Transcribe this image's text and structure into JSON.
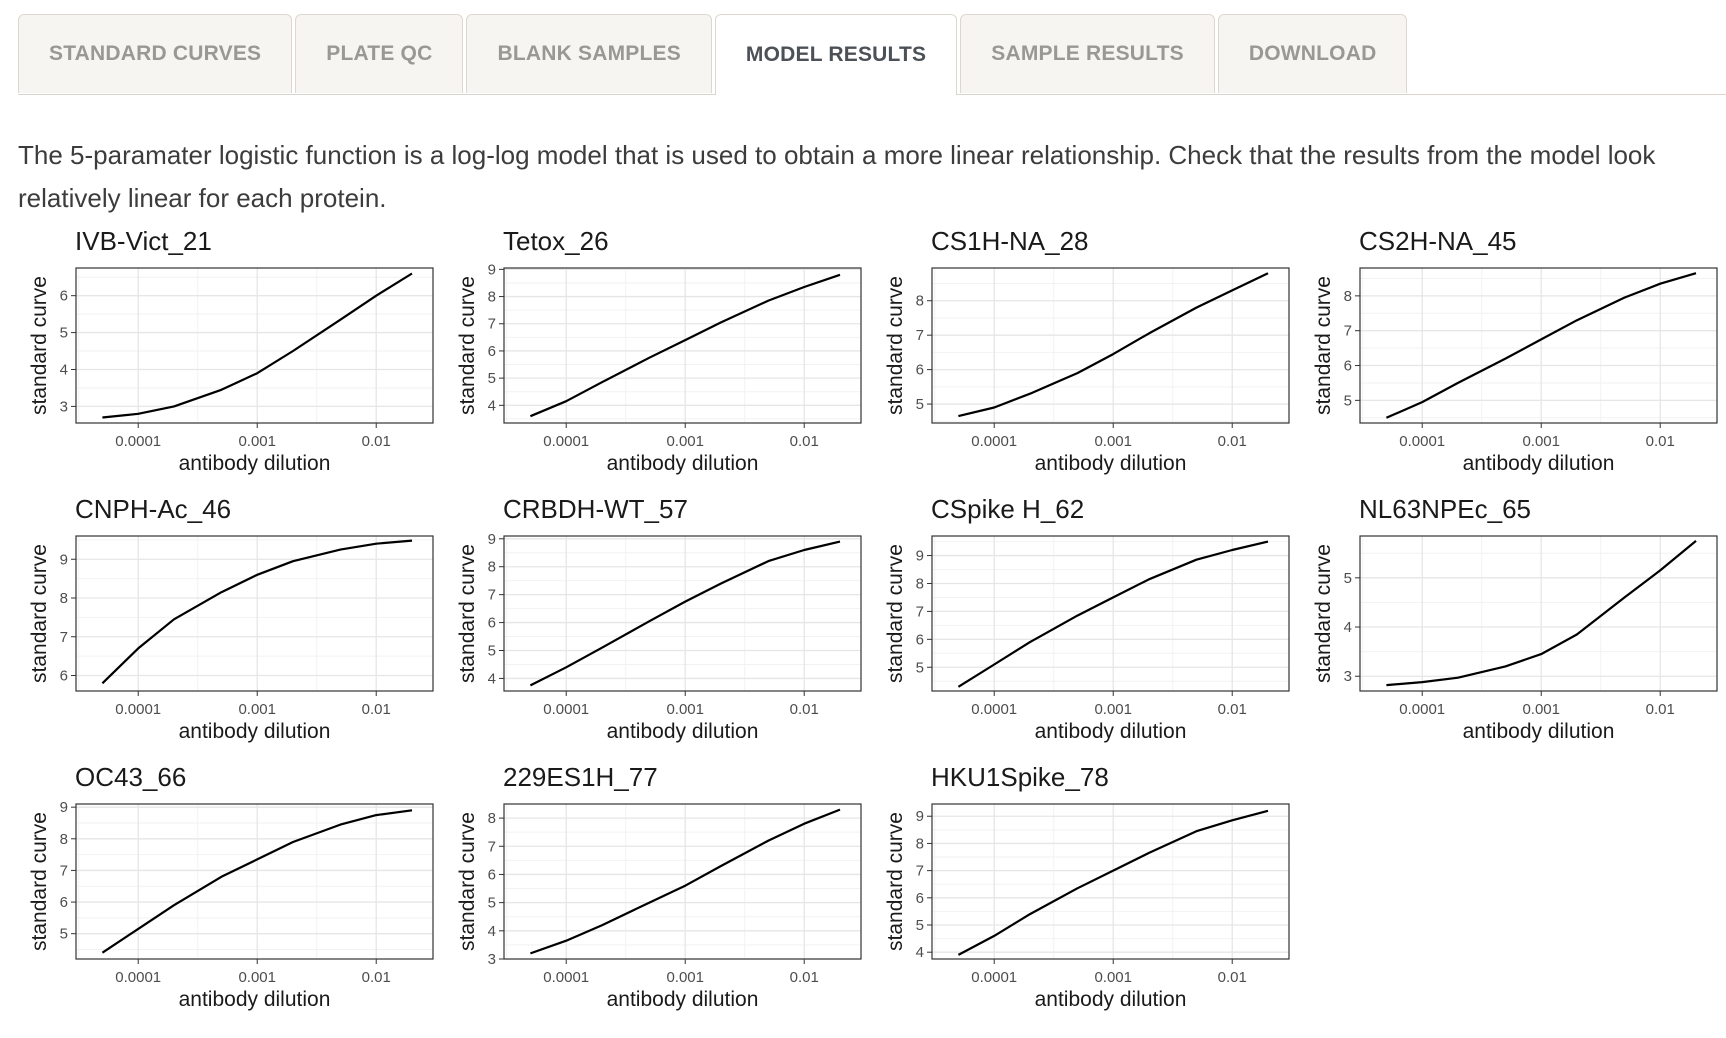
{
  "tabs": [
    {
      "label": "STANDARD CURVES",
      "active": false
    },
    {
      "label": "PLATE QC",
      "active": false
    },
    {
      "label": "BLANK SAMPLES",
      "active": false
    },
    {
      "label": "MODEL RESULTS",
      "active": true
    },
    {
      "label": "SAMPLE RESULTS",
      "active": false
    },
    {
      "label": "DOWNLOAD",
      "active": false
    }
  ],
  "description": "The 5-paramater logistic function is a log-log model that is used to obtain a more linear relationship. Check that the results from the model look relatively linear for each protein.",
  "chart_data": [
    {
      "type": "line",
      "title": "IVB-Vict_21",
      "xlabel": "antibody dilution",
      "ylabel": "standard curve",
      "xscale": "log",
      "xticks": [
        0.0001,
        0.001,
        0.01
      ],
      "xtick_labels": [
        "0.0001",
        "0.001",
        "0.01"
      ],
      "xlim": [
        3e-05,
        0.03
      ],
      "yticks": [
        3,
        4,
        5,
        6
      ],
      "ylim": [
        2.55,
        6.75
      ],
      "x": [
        5e-05,
        0.0001,
        0.0002,
        0.0005,
        0.001,
        0.002,
        0.005,
        0.01,
        0.02
      ],
      "y": [
        2.7,
        2.8,
        3.0,
        3.45,
        3.9,
        4.5,
        5.35,
        6.0,
        6.6
      ]
    },
    {
      "type": "line",
      "title": "Tetox_26",
      "xlabel": "antibody dilution",
      "ylabel": "standard curve",
      "xscale": "log",
      "xticks": [
        0.0001,
        0.001,
        0.01
      ],
      "xtick_labels": [
        "0.0001",
        "0.001",
        "0.01"
      ],
      "xlim": [
        3e-05,
        0.03
      ],
      "yticks": [
        4,
        5,
        6,
        7,
        8,
        9
      ],
      "ylim": [
        3.35,
        9.05
      ],
      "x": [
        5e-05,
        0.0001,
        0.0002,
        0.0005,
        0.001,
        0.002,
        0.005,
        0.01,
        0.02
      ],
      "y": [
        3.6,
        4.15,
        4.85,
        5.75,
        6.4,
        7.05,
        7.85,
        8.35,
        8.8
      ]
    },
    {
      "type": "line",
      "title": "CS1H-NA_28",
      "xlabel": "antibody dilution",
      "ylabel": "standard curve",
      "xscale": "log",
      "xticks": [
        0.0001,
        0.001,
        0.01
      ],
      "xtick_labels": [
        "0.0001",
        "0.001",
        "0.01"
      ],
      "xlim": [
        3e-05,
        0.03
      ],
      "yticks": [
        5,
        6,
        7,
        8
      ],
      "ylim": [
        4.45,
        8.95
      ],
      "x": [
        5e-05,
        0.0001,
        0.0002,
        0.0005,
        0.001,
        0.002,
        0.005,
        0.01,
        0.02
      ],
      "y": [
        4.65,
        4.9,
        5.3,
        5.9,
        6.45,
        7.05,
        7.8,
        8.3,
        8.8
      ]
    },
    {
      "type": "line",
      "title": "CS2H-NA_45",
      "xlabel": "antibody dilution",
      "ylabel": "standard curve",
      "xscale": "log",
      "xticks": [
        0.0001,
        0.001,
        0.01
      ],
      "xtick_labels": [
        "0.0001",
        "0.001",
        "0.01"
      ],
      "xlim": [
        3e-05,
        0.03
      ],
      "yticks": [
        5,
        6,
        7,
        8
      ],
      "ylim": [
        4.35,
        8.8
      ],
      "x": [
        5e-05,
        0.0001,
        0.0002,
        0.0005,
        0.001,
        0.002,
        0.005,
        0.01,
        0.02
      ],
      "y": [
        4.5,
        4.95,
        5.5,
        6.2,
        6.75,
        7.3,
        7.95,
        8.35,
        8.65
      ]
    },
    {
      "type": "line",
      "title": "CNPH-Ac_46",
      "xlabel": "antibody dilution",
      "ylabel": "standard curve",
      "xscale": "log",
      "xticks": [
        0.0001,
        0.001,
        0.01
      ],
      "xtick_labels": [
        "0.0001",
        "0.001",
        "0.01"
      ],
      "xlim": [
        3e-05,
        0.03
      ],
      "yticks": [
        6,
        7,
        8,
        9
      ],
      "ylim": [
        5.6,
        9.6
      ],
      "x": [
        5e-05,
        0.0001,
        0.0002,
        0.0005,
        0.001,
        0.002,
        0.005,
        0.01,
        0.02
      ],
      "y": [
        5.8,
        6.7,
        7.45,
        8.15,
        8.6,
        8.95,
        9.25,
        9.4,
        9.48
      ]
    },
    {
      "type": "line",
      "title": "CRBDH-WT_57",
      "xlabel": "antibody dilution",
      "ylabel": "standard curve",
      "xscale": "log",
      "xticks": [
        0.0001,
        0.001,
        0.01
      ],
      "xtick_labels": [
        "0.0001",
        "0.001",
        "0.01"
      ],
      "xlim": [
        3e-05,
        0.03
      ],
      "yticks": [
        4,
        5,
        6,
        7,
        8,
        9
      ],
      "ylim": [
        3.55,
        9.1
      ],
      "x": [
        5e-05,
        0.0001,
        0.0002,
        0.0005,
        0.001,
        0.002,
        0.005,
        0.01,
        0.02
      ],
      "y": [
        3.75,
        4.4,
        5.1,
        6.05,
        6.75,
        7.4,
        8.2,
        8.6,
        8.9
      ]
    },
    {
      "type": "line",
      "title": "CSpike H_62",
      "xlabel": "antibody dilution",
      "ylabel": "standard curve",
      "xscale": "log",
      "xticks": [
        0.0001,
        0.001,
        0.01
      ],
      "xtick_labels": [
        "0.0001",
        "0.001",
        "0.01"
      ],
      "xlim": [
        3e-05,
        0.03
      ],
      "yticks": [
        5,
        6,
        7,
        8,
        9
      ],
      "ylim": [
        4.15,
        9.7
      ],
      "x": [
        5e-05,
        0.0001,
        0.0002,
        0.0005,
        0.001,
        0.002,
        0.005,
        0.01,
        0.02
      ],
      "y": [
        4.3,
        5.1,
        5.9,
        6.85,
        7.5,
        8.15,
        8.85,
        9.2,
        9.5
      ]
    },
    {
      "type": "line",
      "title": "NL63NPEc_65",
      "xlabel": "antibody dilution",
      "ylabel": "standard curve",
      "xscale": "log",
      "xticks": [
        0.0001,
        0.001,
        0.01
      ],
      "xtick_labels": [
        "0.0001",
        "0.001",
        "0.01"
      ],
      "xlim": [
        3e-05,
        0.03
      ],
      "yticks": [
        3,
        4,
        5
      ],
      "ylim": [
        2.7,
        5.85
      ],
      "x": [
        5e-05,
        0.0001,
        0.0002,
        0.0005,
        0.001,
        0.002,
        0.005,
        0.01,
        0.02
      ],
      "y": [
        2.82,
        2.88,
        2.97,
        3.2,
        3.45,
        3.85,
        4.6,
        5.15,
        5.75
      ]
    },
    {
      "type": "line",
      "title": "OC43_66",
      "xlabel": "antibody dilution",
      "ylabel": "standard curve",
      "xscale": "log",
      "xticks": [
        0.0001,
        0.001,
        0.01
      ],
      "xtick_labels": [
        "0.0001",
        "0.001",
        "0.01"
      ],
      "xlim": [
        3e-05,
        0.03
      ],
      "yticks": [
        5,
        6,
        7,
        8,
        9
      ],
      "ylim": [
        4.2,
        9.1
      ],
      "x": [
        5e-05,
        0.0001,
        0.0002,
        0.0005,
        0.001,
        0.002,
        0.005,
        0.01,
        0.02
      ],
      "y": [
        4.4,
        5.15,
        5.9,
        6.8,
        7.35,
        7.9,
        8.45,
        8.75,
        8.9
      ]
    },
    {
      "type": "line",
      "title": "229ES1H_77",
      "xlabel": "antibody dilution",
      "ylabel": "standard curve",
      "xscale": "log",
      "xticks": [
        0.0001,
        0.001,
        0.01
      ],
      "xtick_labels": [
        "0.0001",
        "0.001",
        "0.01"
      ],
      "xlim": [
        3e-05,
        0.03
      ],
      "yticks": [
        3,
        4,
        5,
        6,
        7,
        8
      ],
      "ylim": [
        3.0,
        8.5
      ],
      "x": [
        5e-05,
        0.0001,
        0.0002,
        0.0005,
        0.001,
        0.002,
        0.005,
        0.01,
        0.02
      ],
      "y": [
        3.2,
        3.65,
        4.2,
        5.0,
        5.6,
        6.3,
        7.2,
        7.8,
        8.3
      ]
    },
    {
      "type": "line",
      "title": "HKU1Spike_78",
      "xlabel": "antibody dilution",
      "ylabel": "standard curve",
      "xscale": "log",
      "xticks": [
        0.0001,
        0.001,
        0.01
      ],
      "xtick_labels": [
        "0.0001",
        "0.001",
        "0.01"
      ],
      "xlim": [
        3e-05,
        0.03
      ],
      "yticks": [
        4,
        5,
        6,
        7,
        8,
        9
      ],
      "ylim": [
        3.75,
        9.45
      ],
      "x": [
        5e-05,
        0.0001,
        0.0002,
        0.0005,
        0.001,
        0.002,
        0.005,
        0.01,
        0.02
      ],
      "y": [
        3.9,
        4.6,
        5.4,
        6.35,
        7.0,
        7.65,
        8.45,
        8.85,
        9.2
      ]
    }
  ]
}
